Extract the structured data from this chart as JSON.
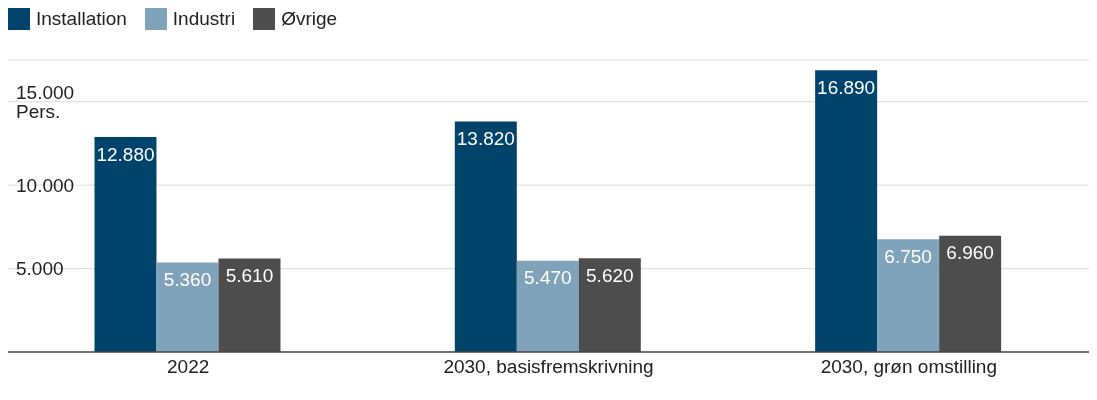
{
  "chart_data": {
    "type": "bar",
    "categories": [
      "2022",
      "2030, basisfremskrivning",
      "2030, grøn omstilling"
    ],
    "series": [
      {
        "name": "Installation",
        "color": "#00436b",
        "values": [
          12880,
          13820,
          16890
        ],
        "value_labels": [
          "12.880",
          "13.820",
          "16.890"
        ]
      },
      {
        "name": "Industri",
        "color": "#7fa3bb",
        "values": [
          5360,
          5470,
          6750
        ],
        "value_labels": [
          "5.360",
          "5.470",
          "6.750"
        ]
      },
      {
        "name": "Øvrige",
        "color": "#4d4d4d",
        "values": [
          5610,
          5620,
          6960
        ],
        "value_labels": [
          "5.610",
          "5.620",
          "6.960"
        ]
      }
    ],
    "ylim": [
      0,
      17500
    ],
    "yticks": [
      {
        "value": 0,
        "label": null
      },
      {
        "value": 5000,
        "label": "5.000"
      },
      {
        "value": 10000,
        "label": "10.000"
      },
      {
        "value": 15000,
        "label": "15.000 Pers."
      }
    ],
    "grid": "y",
    "legend": "top left"
  }
}
